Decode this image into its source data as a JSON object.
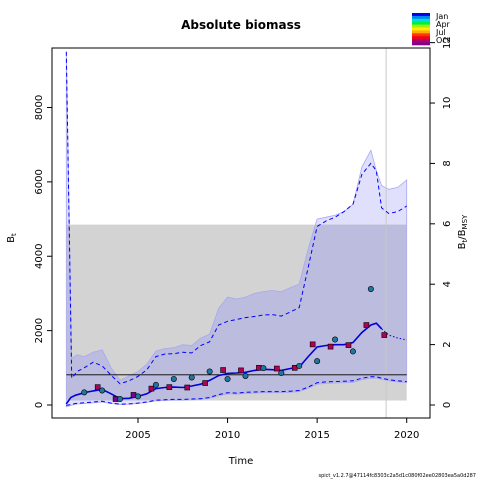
{
  "chart_data": {
    "type": "line",
    "title": "Absolute biomass",
    "xlabel": "Time",
    "ylabel_left": "B",
    "ylabel_left_sub": "t",
    "ylabel_right_main": "B",
    "ylabel_right_sub1": "t",
    "ylabel_right_slash": "/B",
    "ylabel_right_sub2": "MSY",
    "xlim": [
      2000.2,
      2021.3
    ],
    "ylim_left": [
      -350,
      9600
    ],
    "ylim_right": [
      0,
      12
    ],
    "bmsy": 812,
    "x_ticks": [
      2005,
      2010,
      2015,
      2020
    ],
    "x_tick_labels": [
      "2005",
      "2010",
      "2015",
      "2020"
    ],
    "y_left_ticks": [
      0,
      2000,
      4000,
      6000,
      8000
    ],
    "y_left_tick_labels": [
      "0",
      "2000",
      "4000",
      "6000",
      "8000"
    ],
    "y_right_ticks": [
      0,
      2,
      4,
      6,
      8,
      10,
      12
    ],
    "y_right_tick_labels": [
      "0",
      "2",
      "4",
      "6",
      "8",
      "10",
      "12"
    ],
    "colors": {
      "ci_fill": "#e0e0fc",
      "ci_fill_stroke": "#a8a8f2",
      "ref_region": "#d3d3d3",
      "overlap": "#bcbcde",
      "estimate": "#0000dd",
      "ci_line": "#0000ff",
      "ref_line": "#000000",
      "vline": "#c8c8c8"
    },
    "reference_box": {
      "x": [
        2001,
        2020
      ],
      "y": [
        120,
        4850
      ]
    },
    "vertical_line_x": 2018.85,
    "estimate": {
      "x": [
        2001.0,
        2001.25,
        2001.5,
        2002,
        2002.5,
        2003,
        2003.5,
        2004,
        2004.5,
        2005,
        2005.5,
        2006,
        2006.5,
        2007,
        2007.5,
        2008,
        2008.5,
        2009,
        2009.5,
        2010,
        2010.5,
        2011,
        2011.5,
        2012,
        2012.5,
        2013,
        2013.5,
        2014,
        2014.5,
        2015,
        2015.5,
        2016,
        2016.5,
        2017,
        2017.5,
        2018,
        2018.3,
        2018.6,
        2019,
        2019.5,
        2020
      ],
      "y": [
        30,
        200,
        260,
        330,
        380,
        420,
        300,
        170,
        180,
        230,
        300,
        440,
        470,
        480,
        470,
        510,
        560,
        660,
        790,
        850,
        860,
        880,
        930,
        960,
        950,
        930,
        980,
        1020,
        1300,
        1560,
        1600,
        1620,
        1620,
        1680,
        1950,
        2150,
        2200,
        2050,
        1880,
        1800,
        1750
      ]
    },
    "ci_upper": {
      "x": [
        2001.0,
        2001.3,
        2001.6,
        2002,
        2002.5,
        2003,
        2003.5,
        2004,
        2004.5,
        2005,
        2005.5,
        2006,
        2006.5,
        2007,
        2007.5,
        2008,
        2008.5,
        2009,
        2009.5,
        2010,
        2010.5,
        2011,
        2011.5,
        2012,
        2012.5,
        2013,
        2013.5,
        2014,
        2014.5,
        2015,
        2015.5,
        2016,
        2016.5,
        2017,
        2017.5,
        2018,
        2018.3,
        2018.6,
        2019,
        2019.5,
        2020
      ],
      "y": [
        9500,
        720,
        900,
        1000,
        1150,
        1050,
        800,
        570,
        650,
        770,
        950,
        1300,
        1370,
        1380,
        1420,
        1400,
        1600,
        1700,
        2150,
        2250,
        2300,
        2350,
        2380,
        2420,
        2430,
        2390,
        2500,
        2620,
        3700,
        4800,
        4950,
        5050,
        5200,
        5400,
        6200,
        6500,
        6300,
        5300,
        5150,
        5200,
        5350
      ]
    },
    "ci_lower": {
      "x": [
        2001.0,
        2001.5,
        2002,
        2002.5,
        2003,
        2003.5,
        2004,
        2004.5,
        2005,
        2005.5,
        2006,
        2006.5,
        2007,
        2007.5,
        2008,
        2008.5,
        2009,
        2009.5,
        2010,
        2010.5,
        2011,
        2011.5,
        2012,
        2012.5,
        2013,
        2013.5,
        2014,
        2014.5,
        2015,
        2015.5,
        2016,
        2016.5,
        2017,
        2017.5,
        2018,
        2018.3,
        2018.6,
        2019,
        2019.5,
        2020
      ],
      "y": [
        -10,
        40,
        60,
        80,
        100,
        50,
        20,
        30,
        50,
        80,
        130,
        140,
        150,
        150,
        160,
        170,
        200,
        280,
        330,
        320,
        340,
        350,
        360,
        360,
        360,
        370,
        390,
        480,
        600,
        620,
        630,
        640,
        650,
        720,
        760,
        760,
        720,
        680,
        650,
        630
      ]
    },
    "band_upper": {
      "x": [
        2001.0,
        2001.3,
        2001.6,
        2002,
        2002.5,
        2003,
        2003.5,
        2004,
        2004.5,
        2005,
        2005.5,
        2006,
        2006.5,
        2007,
        2007.5,
        2008,
        2008.5,
        2009,
        2009.5,
        2010,
        2010.5,
        2011,
        2011.5,
        2012,
        2012.5,
        2013,
        2013.5,
        2014,
        2014.5,
        2015,
        2015.5,
        2016,
        2016.5,
        2017,
        2017.5,
        2018,
        2018.3,
        2018.6,
        2019,
        2019.5,
        2020
      ],
      "y": [
        9500,
        1250,
        1350,
        1300,
        1420,
        1480,
        1000,
        670,
        780,
        900,
        1100,
        1450,
        1520,
        1540,
        1620,
        1600,
        1800,
        1900,
        2600,
        2900,
        2850,
        2900,
        3000,
        3050,
        3080,
        3050,
        3150,
        3250,
        4200,
        5000,
        5050,
        5100,
        5200,
        5400,
        6400,
        6850,
        6300,
        5900,
        5800,
        5850,
        6050
      ]
    },
    "band_lower": {
      "x": [
        2001.0,
        2001.5,
        2002,
        2002.5,
        2003,
        2003.5,
        2004,
        2004.5,
        2005,
        2005.5,
        2006,
        2006.5,
        2007,
        2007.5,
        2008,
        2008.5,
        2009,
        2009.5,
        2010,
        2010.5,
        2011,
        2011.5,
        2012,
        2012.5,
        2013,
        2013.5,
        2014,
        2014.5,
        2015,
        2015.5,
        2016,
        2016.5,
        2017,
        2017.5,
        2018,
        2018.3,
        2018.6,
        2019,
        2019.5,
        2020
      ],
      "y": [
        -50,
        20,
        40,
        60,
        80,
        40,
        10,
        20,
        40,
        70,
        110,
        120,
        130,
        130,
        140,
        150,
        180,
        250,
        300,
        290,
        310,
        320,
        330,
        330,
        330,
        340,
        360,
        450,
        560,
        580,
        590,
        600,
        610,
        680,
        720,
        720,
        690,
        650,
        620,
        600
      ]
    },
    "ci_fill_path_extra": [],
    "observations": [
      {
        "x": 2002.0,
        "y": 340,
        "color": "#1f77a0",
        "shape": "circle"
      },
      {
        "x": 2002.75,
        "y": 480,
        "color": "#b00058",
        "shape": "square"
      },
      {
        "x": 2003.0,
        "y": 390,
        "color": "#1f77a0",
        "shape": "circle"
      },
      {
        "x": 2003.75,
        "y": 160,
        "color": "#7a0095",
        "shape": "square"
      },
      {
        "x": 2004.0,
        "y": 160,
        "color": "#1f77a0",
        "shape": "circle"
      },
      {
        "x": 2004.75,
        "y": 270,
        "color": "#7a0095",
        "shape": "square"
      },
      {
        "x": 2005.0,
        "y": 230,
        "color": "#1f77a0",
        "shape": "circle"
      },
      {
        "x": 2005.75,
        "y": 440,
        "color": "#b00058",
        "shape": "square"
      },
      {
        "x": 2006.0,
        "y": 540,
        "color": "#1f77a0",
        "shape": "circle"
      },
      {
        "x": 2006.75,
        "y": 480,
        "color": "#b00058",
        "shape": "square"
      },
      {
        "x": 2007.0,
        "y": 700,
        "color": "#1f77a0",
        "shape": "circle"
      },
      {
        "x": 2007.75,
        "y": 470,
        "color": "#b00058",
        "shape": "square"
      },
      {
        "x": 2008.0,
        "y": 740,
        "color": "#1f77a0",
        "shape": "circle"
      },
      {
        "x": 2008.75,
        "y": 590,
        "color": "#b00058",
        "shape": "square"
      },
      {
        "x": 2009.0,
        "y": 900,
        "color": "#1f77a0",
        "shape": "circle"
      },
      {
        "x": 2009.75,
        "y": 940,
        "color": "#b00058",
        "shape": "square"
      },
      {
        "x": 2010.0,
        "y": 700,
        "color": "#1f77a0",
        "shape": "circle"
      },
      {
        "x": 2010.75,
        "y": 930,
        "color": "#b00058",
        "shape": "square"
      },
      {
        "x": 2011.0,
        "y": 780,
        "color": "#1f77a0",
        "shape": "circle"
      },
      {
        "x": 2011.75,
        "y": 1000,
        "color": "#b00058",
        "shape": "square"
      },
      {
        "x": 2012.0,
        "y": 990,
        "color": "#1f77a0",
        "shape": "circle"
      },
      {
        "x": 2012.75,
        "y": 980,
        "color": "#b00058",
        "shape": "square"
      },
      {
        "x": 2013.0,
        "y": 860,
        "color": "#1f77a0",
        "shape": "circle"
      },
      {
        "x": 2013.75,
        "y": 1000,
        "color": "#b00058",
        "shape": "square"
      },
      {
        "x": 2014.0,
        "y": 1050,
        "color": "#1f77a0",
        "shape": "circle"
      },
      {
        "x": 2014.75,
        "y": 1630,
        "color": "#b00058",
        "shape": "square"
      },
      {
        "x": 2015.0,
        "y": 1180,
        "color": "#1f77a0",
        "shape": "circle"
      },
      {
        "x": 2015.75,
        "y": 1570,
        "color": "#b00058",
        "shape": "square"
      },
      {
        "x": 2016.0,
        "y": 1760,
        "color": "#1f77a0",
        "shape": "circle"
      },
      {
        "x": 2016.75,
        "y": 1610,
        "color": "#b00058",
        "shape": "square"
      },
      {
        "x": 2017.0,
        "y": 1440,
        "color": "#1f77a0",
        "shape": "circle"
      },
      {
        "x": 2017.75,
        "y": 2150,
        "color": "#b00058",
        "shape": "square"
      },
      {
        "x": 2018.0,
        "y": 3120,
        "color": "#1f77a0",
        "shape": "circle"
      },
      {
        "x": 2018.75,
        "y": 1880,
        "color": "#b00058",
        "shape": "square"
      }
    ],
    "legend": {
      "entries": [
        {
          "label": "Jan",
          "color": "#0000ee"
        },
        {
          "label": "Apr",
          "color": "#00cc33"
        },
        {
          "label": "Jul",
          "color": "#ff4400"
        },
        {
          "label": "Oct",
          "color": "#880088"
        }
      ],
      "gradient_stops": [
        "#0000ee",
        "#0088ee",
        "#00dddd",
        "#00ee44",
        "#aaee00",
        "#ffee00",
        "#ffaa00",
        "#ff3300",
        "#ee0022",
        "#aa0066",
        "#880088"
      ],
      "placement": "top-right"
    },
    "footer": "spict_v1.2.7@47114fc8303c2a5d1c080f02ee02803ea5a0d287"
  }
}
